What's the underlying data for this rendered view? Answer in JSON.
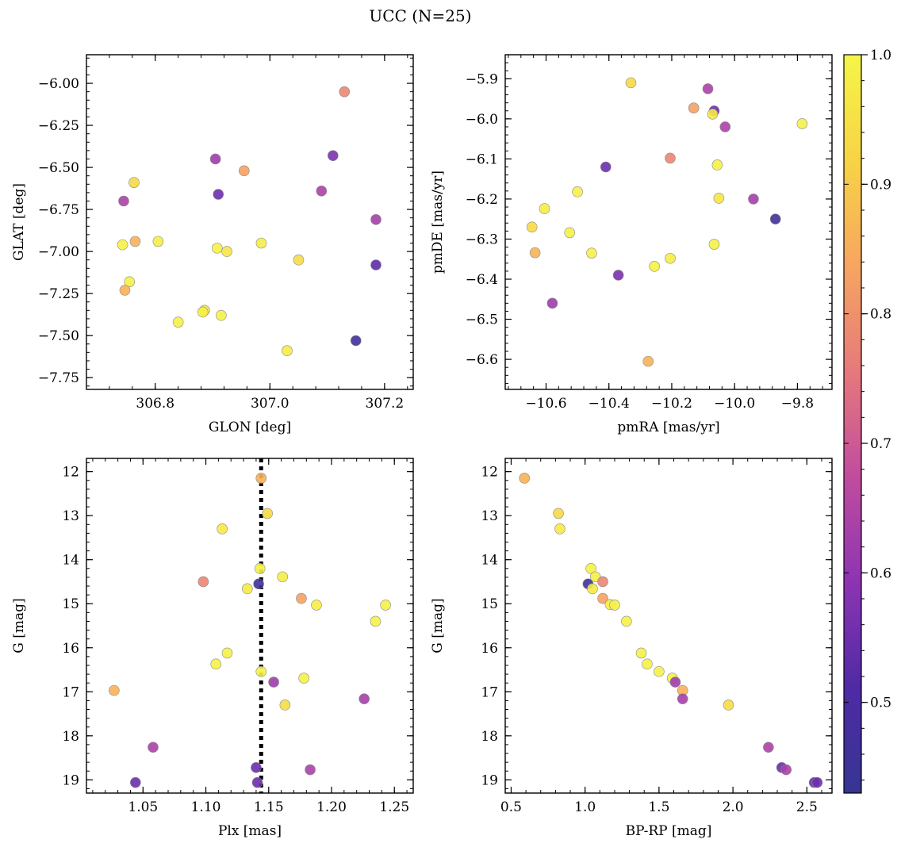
{
  "figure": {
    "title": "UCC (N=25)"
  },
  "colorbar": {
    "range": [
      0.43,
      1.0
    ],
    "ticks": [
      "0.5",
      "0.6",
      "0.7",
      "0.8",
      "0.9",
      "1.0"
    ],
    "tick_values": [
      0.5,
      0.6,
      0.7,
      0.8,
      0.9,
      1.0
    ],
    "colormap": "plasma",
    "stops": [
      "#363593",
      "#4f2aa5",
      "#8d34b3",
      "#c14c9e",
      "#e6797b",
      "#f7a560",
      "#f7d445",
      "#f5f548"
    ]
  },
  "chart_data": [
    {
      "type": "scatter",
      "xlabel": "GLON [deg]",
      "ylabel": "GLAT [deg]",
      "xlim": [
        306.68,
        307.25
      ],
      "ylim": [
        -7.82,
        -5.83
      ],
      "x_ticks": [
        306.8,
        307.0,
        307.2
      ],
      "x_tick_labels": [
        "306.8",
        "307.0",
        "307.2"
      ],
      "y_ticks": [
        -6.0,
        -6.25,
        -6.5,
        -6.75,
        -7.0,
        -7.25,
        -7.5,
        -7.75
      ],
      "y_tick_labels": [
        "−6.00",
        "−6.25",
        "−6.50",
        "−6.75",
        "−7.00",
        "−7.25",
        "−7.50",
        "−7.75"
      ],
      "points": [
        {
          "x": 307.13,
          "y": -6.05,
          "c": 0.78
        },
        {
          "x": 306.905,
          "y": -6.45,
          "c": 0.62
        },
        {
          "x": 306.955,
          "y": -6.52,
          "c": 0.83
        },
        {
          "x": 307.11,
          "y": -6.43,
          "c": 0.57
        },
        {
          "x": 306.91,
          "y": -6.66,
          "c": 0.55
        },
        {
          "x": 306.763,
          "y": -6.59,
          "c": 0.93
        },
        {
          "x": 306.745,
          "y": -6.7,
          "c": 0.64
        },
        {
          "x": 307.09,
          "y": -6.64,
          "c": 0.64
        },
        {
          "x": 307.185,
          "y": -6.81,
          "c": 0.63
        },
        {
          "x": 306.743,
          "y": -6.96,
          "c": 0.99
        },
        {
          "x": 306.765,
          "y": -6.94,
          "c": 0.86
        },
        {
          "x": 306.805,
          "y": -6.94,
          "c": 0.98
        },
        {
          "x": 306.985,
          "y": -6.95,
          "c": 0.98
        },
        {
          "x": 306.908,
          "y": -6.98,
          "c": 0.99
        },
        {
          "x": 306.925,
          "y": -7.0,
          "c": 0.96
        },
        {
          "x": 307.05,
          "y": -7.05,
          "c": 0.94
        },
        {
          "x": 307.185,
          "y": -7.08,
          "c": 0.53
        },
        {
          "x": 306.755,
          "y": -7.18,
          "c": 0.99
        },
        {
          "x": 306.747,
          "y": -7.23,
          "c": 0.86
        },
        {
          "x": 306.84,
          "y": -7.42,
          "c": 0.99
        },
        {
          "x": 306.886,
          "y": -7.35,
          "c": 0.97
        },
        {
          "x": 306.883,
          "y": -7.36,
          "c": 0.99
        },
        {
          "x": 306.915,
          "y": -7.38,
          "c": 0.99
        },
        {
          "x": 307.03,
          "y": -7.59,
          "c": 0.98
        },
        {
          "x": 307.15,
          "y": -7.53,
          "c": 0.46
        }
      ]
    },
    {
      "type": "scatter",
      "xlabel": "pmRA [mas/yr]",
      "ylabel": "pmDE [mas/yr]",
      "xlim": [
        -10.73,
        -9.69
      ],
      "ylim": [
        -6.675,
        -5.84
      ],
      "x_ticks": [
        -10.6,
        -10.4,
        -10.2,
        -10.0,
        -9.8
      ],
      "x_tick_labels": [
        "−10.6",
        "−10.4",
        "−10.2",
        "−10.0",
        "−9.8"
      ],
      "y_ticks": [
        -5.9,
        -6.0,
        -6.1,
        -6.2,
        -6.3,
        -6.4,
        -6.5,
        -6.6
      ],
      "y_tick_labels": [
        "−5.9",
        "−6.0",
        "−6.1",
        "−6.2",
        "−6.3",
        "−6.4",
        "−6.5",
        "−6.6"
      ],
      "points": [
        {
          "x": -10.33,
          "y": -5.91,
          "c": 0.93
        },
        {
          "x": -10.085,
          "y": -5.925,
          "c": 0.64
        },
        {
          "x": -10.13,
          "y": -5.973,
          "c": 0.83
        },
        {
          "x": -10.065,
          "y": -5.98,
          "c": 0.55
        },
        {
          "x": -10.07,
          "y": -5.988,
          "c": 0.97
        },
        {
          "x": -10.03,
          "y": -6.02,
          "c": 0.64
        },
        {
          "x": -9.785,
          "y": -6.012,
          "c": 0.99
        },
        {
          "x": -10.205,
          "y": -6.098,
          "c": 0.78
        },
        {
          "x": -10.41,
          "y": -6.12,
          "c": 0.55
        },
        {
          "x": -10.055,
          "y": -6.115,
          "c": 0.99
        },
        {
          "x": -10.5,
          "y": -6.182,
          "c": 0.99
        },
        {
          "x": -10.05,
          "y": -6.198,
          "c": 0.96
        },
        {
          "x": -9.94,
          "y": -6.2,
          "c": 0.63
        },
        {
          "x": -10.605,
          "y": -6.224,
          "c": 0.98
        },
        {
          "x": -9.87,
          "y": -6.25,
          "c": 0.46
        },
        {
          "x": -10.645,
          "y": -6.27,
          "c": 0.93
        },
        {
          "x": -10.525,
          "y": -6.284,
          "c": 0.99
        },
        {
          "x": -10.065,
          "y": -6.313,
          "c": 0.99
        },
        {
          "x": -10.635,
          "y": -6.334,
          "c": 0.86
        },
        {
          "x": -10.455,
          "y": -6.335,
          "c": 0.99
        },
        {
          "x": -10.205,
          "y": -6.348,
          "c": 0.98
        },
        {
          "x": -10.255,
          "y": -6.368,
          "c": 0.99
        },
        {
          "x": -10.37,
          "y": -6.39,
          "c": 0.57
        },
        {
          "x": -10.58,
          "y": -6.46,
          "c": 0.62
        },
        {
          "x": -10.275,
          "y": -6.605,
          "c": 0.86
        }
      ]
    },
    {
      "type": "scatter",
      "xlabel": "Plx [mas]",
      "ylabel": "G [mag]",
      "xlim": [
        1.005,
        1.265
      ],
      "ylim": [
        19.3,
        11.7
      ],
      "y_inverted": true,
      "vline": 1.144,
      "x_ticks": [
        1.05,
        1.1,
        1.15,
        1.2,
        1.25
      ],
      "x_tick_labels": [
        "1.05",
        "1.10",
        "1.15",
        "1.20",
        "1.25"
      ],
      "y_ticks": [
        12,
        13,
        14,
        15,
        16,
        17,
        18,
        19
      ],
      "y_tick_labels": [
        "12",
        "13",
        "14",
        "15",
        "16",
        "17",
        "18",
        "19"
      ],
      "points": [
        {
          "x": 1.144,
          "y": 12.15,
          "c": 0.86
        },
        {
          "x": 1.149,
          "y": 12.95,
          "c": 0.93
        },
        {
          "x": 1.113,
          "y": 13.3,
          "c": 0.97
        },
        {
          "x": 1.143,
          "y": 14.2,
          "c": 0.99
        },
        {
          "x": 1.161,
          "y": 14.39,
          "c": 0.98
        },
        {
          "x": 1.098,
          "y": 14.5,
          "c": 0.78
        },
        {
          "x": 1.142,
          "y": 14.55,
          "c": 0.46
        },
        {
          "x": 1.133,
          "y": 14.66,
          "c": 0.97
        },
        {
          "x": 1.176,
          "y": 14.88,
          "c": 0.83
        },
        {
          "x": 1.188,
          "y": 15.03,
          "c": 0.98
        },
        {
          "x": 1.243,
          "y": 15.03,
          "c": 0.99
        },
        {
          "x": 1.235,
          "y": 15.4,
          "c": 0.99
        },
        {
          "x": 1.117,
          "y": 16.12,
          "c": 0.99
        },
        {
          "x": 1.108,
          "y": 16.37,
          "c": 0.99
        },
        {
          "x": 1.144,
          "y": 16.54,
          "c": 0.99
        },
        {
          "x": 1.178,
          "y": 16.69,
          "c": 0.99
        },
        {
          "x": 1.154,
          "y": 16.78,
          "c": 0.62
        },
        {
          "x": 1.027,
          "y": 16.97,
          "c": 0.86
        },
        {
          "x": 1.226,
          "y": 17.16,
          "c": 0.63
        },
        {
          "x": 1.163,
          "y": 17.3,
          "c": 0.94
        },
        {
          "x": 1.058,
          "y": 18.26,
          "c": 0.64
        },
        {
          "x": 1.14,
          "y": 18.72,
          "c": 0.55
        },
        {
          "x": 1.183,
          "y": 18.77,
          "c": 0.64
        },
        {
          "x": 1.044,
          "y": 19.06,
          "c": 0.55
        },
        {
          "x": 1.141,
          "y": 19.06,
          "c": 0.55
        }
      ]
    },
    {
      "type": "scatter",
      "xlabel": "BP-RP [mag]",
      "ylabel": "G [mag]",
      "xlim": [
        0.46,
        2.67
      ],
      "ylim": [
        19.3,
        11.7
      ],
      "y_inverted": true,
      "x_ticks": [
        0.5,
        1.0,
        1.5,
        2.0,
        2.5
      ],
      "x_tick_labels": [
        "0.5",
        "1.0",
        "1.5",
        "2.0",
        "2.5"
      ],
      "y_ticks": [
        12,
        13,
        14,
        15,
        16,
        17,
        18,
        19
      ],
      "y_tick_labels": [
        "12",
        "13",
        "14",
        "15",
        "16",
        "17",
        "18",
        "19"
      ],
      "points": [
        {
          "x": 0.59,
          "y": 12.15,
          "c": 0.86
        },
        {
          "x": 0.82,
          "y": 12.95,
          "c": 0.93
        },
        {
          "x": 0.83,
          "y": 13.3,
          "c": 0.97
        },
        {
          "x": 1.04,
          "y": 14.2,
          "c": 0.99
        },
        {
          "x": 1.07,
          "y": 14.39,
          "c": 0.98
        },
        {
          "x": 1.12,
          "y": 14.5,
          "c": 0.78
        },
        {
          "x": 1.02,
          "y": 14.55,
          "c": 0.46
        },
        {
          "x": 1.05,
          "y": 14.66,
          "c": 0.97
        },
        {
          "x": 1.12,
          "y": 14.88,
          "c": 0.83
        },
        {
          "x": 1.17,
          "y": 15.02,
          "c": 0.98
        },
        {
          "x": 1.2,
          "y": 15.03,
          "c": 0.99
        },
        {
          "x": 1.28,
          "y": 15.4,
          "c": 0.99
        },
        {
          "x": 1.38,
          "y": 16.12,
          "c": 0.99
        },
        {
          "x": 1.42,
          "y": 16.37,
          "c": 0.99
        },
        {
          "x": 1.5,
          "y": 16.54,
          "c": 0.99
        },
        {
          "x": 1.59,
          "y": 16.69,
          "c": 0.99
        },
        {
          "x": 1.61,
          "y": 16.78,
          "c": 0.62
        },
        {
          "x": 1.66,
          "y": 16.97,
          "c": 0.86
        },
        {
          "x": 1.66,
          "y": 17.16,
          "c": 0.63
        },
        {
          "x": 1.97,
          "y": 17.3,
          "c": 0.94
        },
        {
          "x": 2.24,
          "y": 18.26,
          "c": 0.64
        },
        {
          "x": 2.33,
          "y": 18.72,
          "c": 0.55
        },
        {
          "x": 2.36,
          "y": 18.77,
          "c": 0.64
        },
        {
          "x": 2.55,
          "y": 19.06,
          "c": 0.55
        },
        {
          "x": 2.57,
          "y": 19.06,
          "c": 0.55
        }
      ]
    }
  ]
}
